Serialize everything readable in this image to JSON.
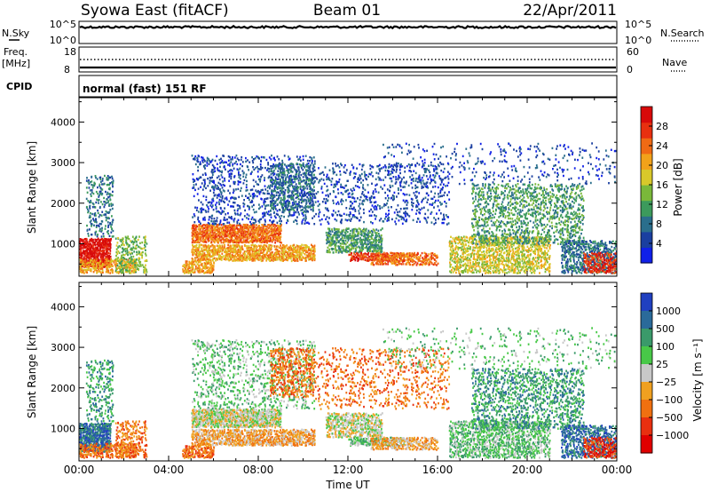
{
  "header": {
    "title": "Syowa East (fitACF)",
    "beam": "Beam 01",
    "date": "22/Apr/2011"
  },
  "top_panels": {
    "nsky": {
      "left_label": "N.Sky",
      "right_label": "N.Search",
      "left_ticks": [
        "10^5",
        "10^0"
      ],
      "right_ticks": [
        "10^5",
        "10^0"
      ]
    },
    "freq": {
      "left_label_1": "Freq.",
      "left_label_2": "[MHz]",
      "right_label": "Nave",
      "left_ticks": [
        "18",
        "8"
      ],
      "right_ticks": [
        "60",
        "0"
      ]
    },
    "cpid": {
      "left_label": "CPID",
      "mode_text": "normal (fast) 151 RF"
    }
  },
  "chart_data": [
    {
      "type": "heatmap",
      "panel": "power",
      "ylabel": "Slant Range [km]",
      "ylim": [
        200,
        4600
      ],
      "yticks": [
        1000,
        2000,
        3000,
        4000
      ],
      "xlim_hours": [
        0,
        24
      ],
      "colorbar": {
        "label": "Power [dB]",
        "ticks": [
          4,
          8,
          12,
          16,
          20,
          24,
          28
        ],
        "range": [
          0,
          32
        ],
        "colors": [
          "#1020e8",
          "#1a3fa0",
          "#2a6e8c",
          "#3c9a5c",
          "#7ab83a",
          "#d8c82a",
          "#f2a21a",
          "#f06a14",
          "#e83010",
          "#d80a0a"
        ]
      }
    },
    {
      "type": "heatmap",
      "panel": "velocity",
      "ylabel": "Slant Range [km]",
      "xlabel": "Time UT",
      "ylim": [
        200,
        4600
      ],
      "yticks": [
        1000,
        2000,
        3000,
        4000
      ],
      "xlim_hours": [
        0,
        24
      ],
      "xticks": [
        "00:00",
        "04:00",
        "08:00",
        "12:00",
        "16:00",
        "20:00",
        "00:00"
      ],
      "colorbar": {
        "label": "Velocity [m s⁻¹]",
        "tick_labels": [
          "1000",
          "500",
          "100",
          "25",
          "−25",
          "−100",
          "−500",
          "−1000"
        ],
        "colors": [
          "#2040c0",
          "#2a6a9a",
          "#3a9a6a",
          "#48c848",
          "#c8c8c8",
          "#f0a020",
          "#f07010",
          "#e83010",
          "#e00000"
        ]
      }
    }
  ]
}
